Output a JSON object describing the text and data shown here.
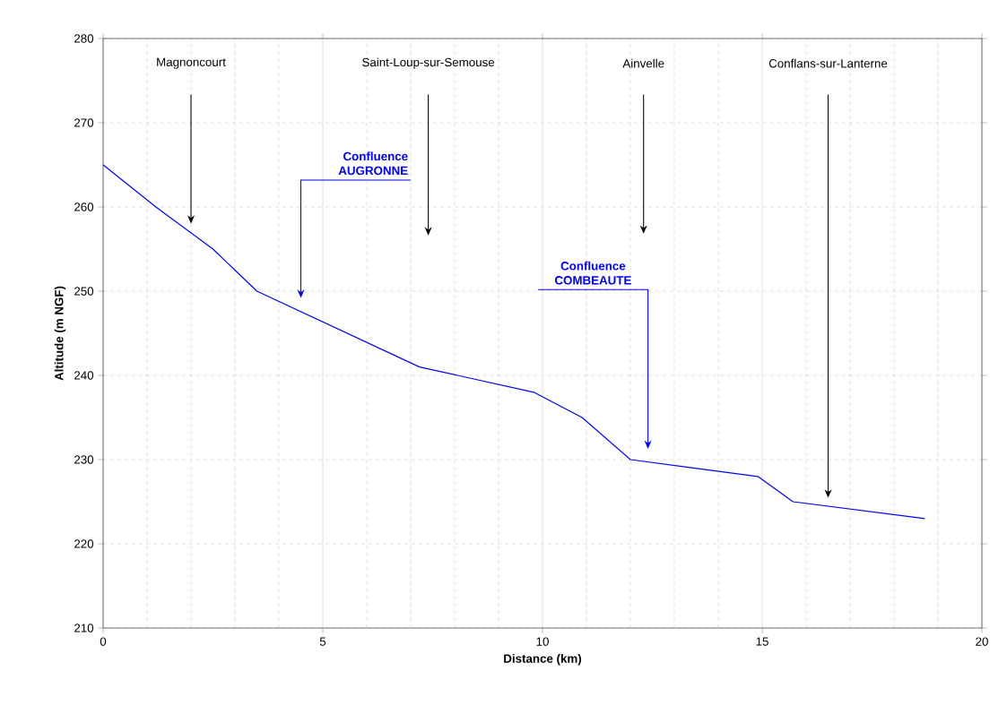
{
  "chart_data": {
    "type": "line",
    "xlabel": "Distance (km)",
    "ylabel": "Altitude (m NGF)",
    "x": [
      0,
      1.2,
      2.5,
      3.5,
      7.2,
      9.8,
      10.9,
      12,
      14.9,
      15.7,
      18.7
    ],
    "series": [
      {
        "color": "#0000ff",
        "values": [
          265,
          260,
          255,
          250,
          241,
          238,
          235,
          230,
          228,
          225,
          223
        ]
      }
    ],
    "xlim": [
      0,
      20
    ],
    "xticks": [
      0,
      5,
      10,
      15,
      20
    ],
    "ylim": [
      210,
      280
    ],
    "yticks": [
      210,
      220,
      230,
      240,
      250,
      260,
      270,
      280
    ],
    "grid": true,
    "marker": "none",
    "line_style": "solid",
    "annotations": [
      "Magnoncourt",
      "Saint-Loup-sur-Semouse",
      "Ainvelle",
      "Conflans-sur-Lanterne",
      "Confluence AUGRONNE",
      "Confluence COMBEAUTE"
    ]
  }
}
